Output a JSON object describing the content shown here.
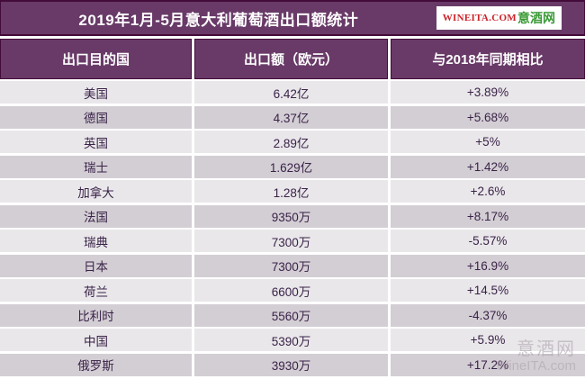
{
  "title": "2019年1月-5月意大利葡萄酒出口额统计",
  "logo": {
    "domain": "WINEITA.COM",
    "name": "意酒网"
  },
  "watermark": {
    "line1": "意酒网",
    "line2": "WineITA.com"
  },
  "colors": {
    "purple": "#693a68",
    "border_dark": "#430b3a",
    "row_light": "#e9e7ea",
    "row_dark": "#d3ced4",
    "text_dark": "#3a2348",
    "logo_red": "#cc2229",
    "logo_green": "#3a9a35",
    "watermark_gray": "#a99fa9"
  },
  "chart_data": {
    "type": "table",
    "title": "2019年1月-5月意大利葡萄酒出口额统计",
    "columns": [
      "出口目的国",
      "出口额（欧元）",
      "与2018年同期相比"
    ],
    "rows": [
      {
        "country": "美国",
        "amount": "6.42亿",
        "change": "+3.89%"
      },
      {
        "country": "德国",
        "amount": "4.37亿",
        "change": "+5.68%"
      },
      {
        "country": "英国",
        "amount": "2.89亿",
        "change": "+5%"
      },
      {
        "country": "瑞士",
        "amount": "1.629亿",
        "change": "+1.42%"
      },
      {
        "country": "加拿大",
        "amount": "1.28亿",
        "change": "+2.6%"
      },
      {
        "country": "法国",
        "amount": "9350万",
        "change": "+8.17%"
      },
      {
        "country": "瑞典",
        "amount": "7300万",
        "change": "-5.57%"
      },
      {
        "country": "日本",
        "amount": "7300万",
        "change": "+16.9%"
      },
      {
        "country": "荷兰",
        "amount": "6600万",
        "change": "+14.5%"
      },
      {
        "country": "比利时",
        "amount": "5560万",
        "change": "-4.37%"
      },
      {
        "country": "中国",
        "amount": "5390万",
        "change": "+5.9%"
      },
      {
        "country": "俄罗斯",
        "amount": "3930万",
        "change": "+17.2%"
      }
    ]
  }
}
